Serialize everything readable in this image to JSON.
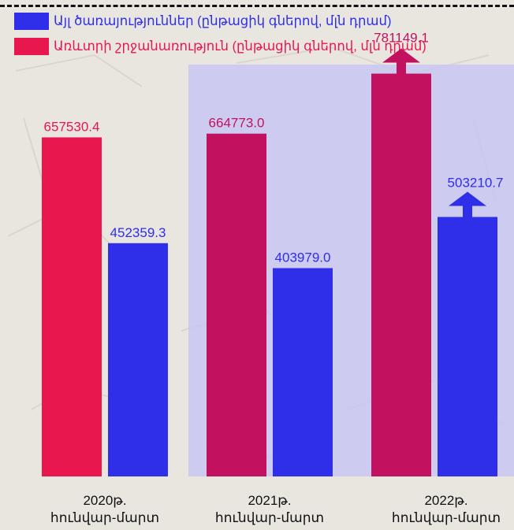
{
  "legend": {
    "items": [
      {
        "label": "Այլ ծառայություններ (ընթացիկ գներով, մլն դրամ)",
        "color": "#2f2ee8"
      },
      {
        "label": "Առևտրի շրջանառություն (ընթացիկ գներով, մլն դրամ)",
        "color": "#e8174e"
      }
    ]
  },
  "colors": {
    "highlight_region": "#c8c6f2",
    "red": "#e8174e",
    "magenta": "#c2115f",
    "blue": "#2f2ee8",
    "background": "#e9e6e0"
  },
  "chart_data": {
    "type": "bar",
    "categories": [
      {
        "line1": "2020թ.",
        "line2": "հունվար-մարտ"
      },
      {
        "line1": "2021թ.",
        "line2": "հունվար-մարտ"
      },
      {
        "line1": "2022թ.",
        "line2": "հունվար-մարտ"
      }
    ],
    "series": [
      {
        "name": "Առևտրի շրջանառություն (ընթացիկ գներով, մլն դրամ)",
        "values": [
          657530.4,
          664773.0,
          781149.1
        ],
        "labels": [
          "657530.4",
          "664773.0",
          "781149.1"
        ]
      },
      {
        "name": "Այլ ծառայություններ (ընթացիկ գներով, մլն դրամ)",
        "values": [
          452359.3,
          403979.0,
          503210.7
        ],
        "labels": [
          "452359.3",
          "403979.0",
          "503210.7"
        ]
      }
    ],
    "increase_arrows": [
      false,
      false,
      true
    ],
    "highlighted_categories": [
      1,
      2
    ],
    "ylim": [
      0,
      1000000
    ],
    "grid": false,
    "legend_position": "top-left"
  }
}
